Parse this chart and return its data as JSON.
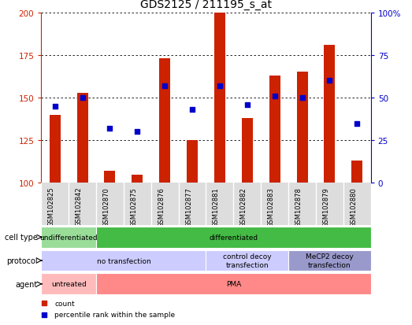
{
  "title": "GDS2125 / 211195_s_at",
  "samples": [
    "GSM102825",
    "GSM102842",
    "GSM102870",
    "GSM102875",
    "GSM102876",
    "GSM102877",
    "GSM102881",
    "GSM102882",
    "GSM102883",
    "GSM102878",
    "GSM102879",
    "GSM102880"
  ],
  "counts": [
    140,
    153,
    107,
    105,
    173,
    125,
    200,
    138,
    163,
    165,
    181,
    113
  ],
  "percentile_ranks": [
    45,
    50,
    32,
    30,
    57,
    43,
    57,
    46,
    51,
    50,
    60,
    35
  ],
  "ylim_left": [
    100,
    200
  ],
  "ylim_right": [
    0,
    100
  ],
  "yticks_left": [
    100,
    125,
    150,
    175,
    200
  ],
  "yticks_right": [
    0,
    25,
    50,
    75,
    100
  ],
  "bar_color": "#cc2200",
  "dot_color": "#0000cc",
  "cell_type_row": {
    "label": "cell type",
    "groups": [
      {
        "text": "undifferentiated",
        "start": 0,
        "end": 1,
        "color": "#99dd99"
      },
      {
        "text": "differentiated",
        "start": 2,
        "end": 11,
        "color": "#44bb44"
      }
    ]
  },
  "protocol_row": {
    "label": "protocol",
    "groups": [
      {
        "text": "no transfection",
        "start": 0,
        "end": 5,
        "color": "#ccccff"
      },
      {
        "text": "control decoy\ntransfection",
        "start": 6,
        "end": 8,
        "color": "#ccccff"
      },
      {
        "text": "MeCP2 decoy\ntransfection",
        "start": 9,
        "end": 11,
        "color": "#9999cc"
      }
    ]
  },
  "agent_row": {
    "label": "agent",
    "groups": [
      {
        "text": "untreated",
        "start": 0,
        "end": 1,
        "color": "#ffbbbb"
      },
      {
        "text": "PMA",
        "start": 2,
        "end": 11,
        "color": "#ff8888"
      }
    ]
  },
  "legend_items": [
    {
      "label": "count",
      "color": "#cc2200"
    },
    {
      "label": "percentile rank within the sample",
      "color": "#0000cc"
    }
  ],
  "bar_bottom": 100,
  "title_fontsize": 10,
  "tick_fontsize": 7.5,
  "sample_fontsize": 6,
  "annot_fontsize": 6.5,
  "label_fontsize": 7
}
